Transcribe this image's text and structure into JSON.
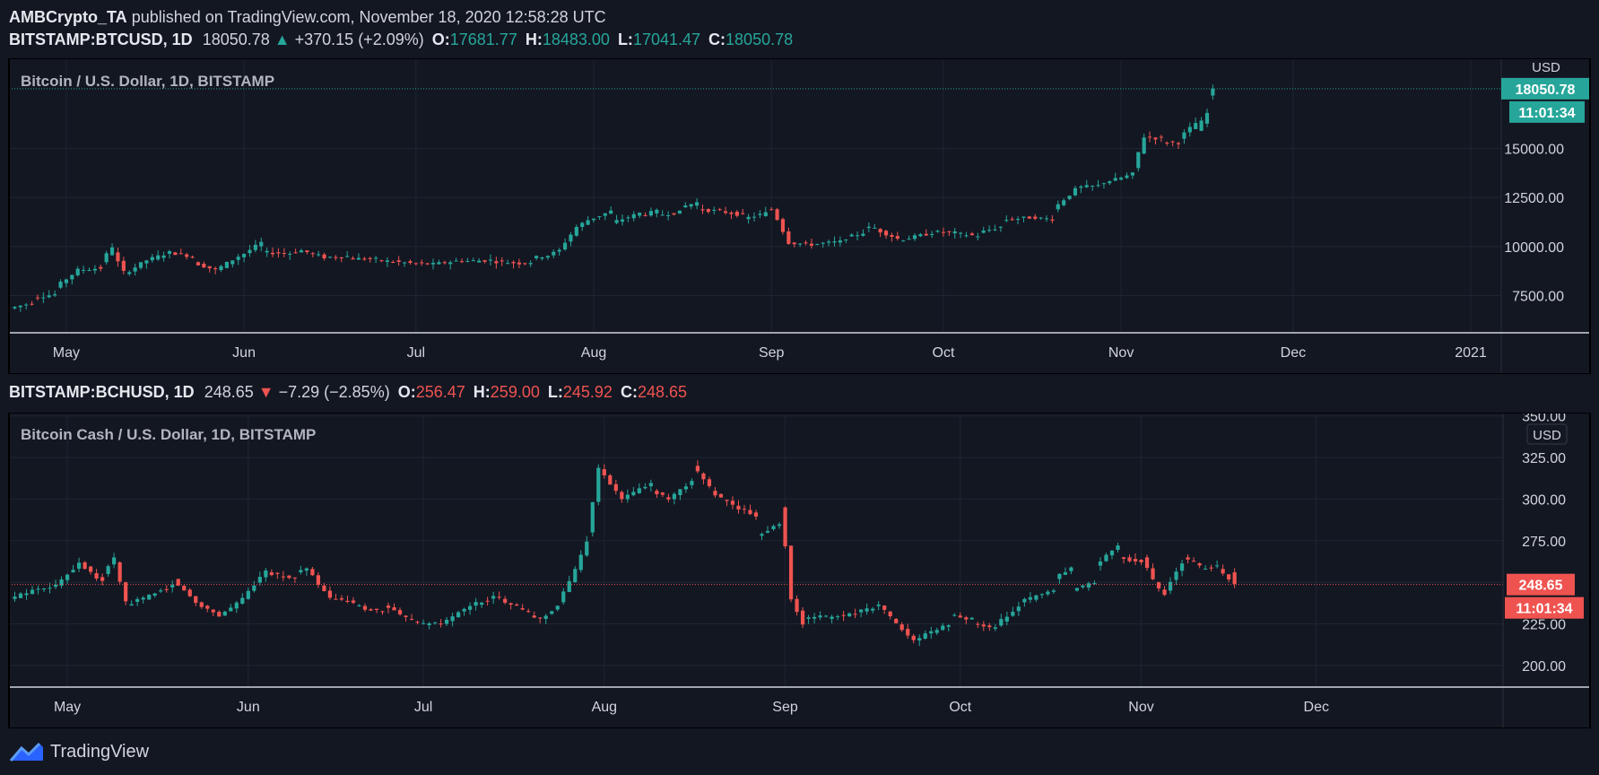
{
  "header": {
    "author": "AMBCrypto_TA",
    "published_text": "published on TradingView.com, November 18, 2020 12:58:28 UTC"
  },
  "btc": {
    "symbol": "BITSTAMP:BTCUSD, 1D",
    "last": "18050.78",
    "arrow": "▲",
    "change": "+370.15 (+2.09%)",
    "o_label": "O:",
    "o": "17681.77",
    "h_label": "H:",
    "h": "18483.00",
    "l_label": "L:",
    "l": "17041.47",
    "c_label": "C:",
    "c": "18050.78",
    "pane_title": "Bitcoin / U.S. Dollar, 1D, BITSTAMP",
    "currency": "USD",
    "price_tag": "18050.78",
    "countdown": "11:01:34"
  },
  "bch": {
    "symbol": "BITSTAMP:BCHUSD, 1D",
    "last": "248.65",
    "arrow": "▼",
    "change": "−7.29 (−2.85%)",
    "o_label": "O:",
    "o": "256.47",
    "h_label": "H:",
    "h": "259.00",
    "l_label": "L:",
    "l": "245.92",
    "c_label": "C:",
    "c": "248.65",
    "pane_title": "Bitcoin Cash / U.S. Dollar, 1D, BITSTAMP",
    "currency": "USD",
    "price_tag": "248.65",
    "countdown": "11:01:34"
  },
  "footer": {
    "brand": "TradingView"
  },
  "colors": {
    "background": "#131722",
    "up": "#26a69a",
    "down": "#ef5350",
    "grid": "#1f2432",
    "text": "#d1d4dc"
  },
  "chart_data": [
    {
      "type": "candlestick",
      "title": "Bitcoin / U.S. Dollar, 1D, BITSTAMP",
      "ylabel": "USD",
      "ylim": [
        5600,
        19600
      ],
      "yticks": [
        7500,
        10000,
        12500,
        15000
      ],
      "ytick_labels": [
        "7500.00",
        "10000.00",
        "12500.00",
        "15000.00"
      ],
      "xticks": [
        "May",
        "Jun",
        "Jul",
        "Aug",
        "Sep",
        "Oct",
        "Nov",
        "Dec",
        "2021"
      ],
      "x_range": [
        "2020-04-21",
        "2021-01-06"
      ],
      "last_price": 18050.78,
      "series": [
        {
          "values": [
            [
              "2020-04-22",
              6850,
              7120
            ],
            [
              "2020-04-26",
              7400,
              7560
            ],
            [
              "2020-04-30",
              7900,
              8800
            ],
            [
              "2020-05-04",
              8800,
              8900
            ],
            [
              "2020-05-08",
              9200,
              10000
            ],
            [
              "2020-05-10",
              9700,
              8700
            ],
            [
              "2020-05-12",
              8600,
              9300
            ],
            [
              "2020-05-16",
              9300,
              9700
            ],
            [
              "2020-05-20",
              9700,
              9500
            ],
            [
              "2020-05-24",
              9200,
              8800
            ],
            [
              "2020-05-28",
              8800,
              9500
            ],
            [
              "2020-06-01",
              9450,
              10200
            ],
            [
              "2020-06-05",
              9700,
              9650
            ],
            [
              "2020-06-10",
              9700,
              9800
            ],
            [
              "2020-06-12",
              9800,
              9450
            ],
            [
              "2020-06-16",
              9450,
              9500
            ],
            [
              "2020-06-20",
              9400,
              9350
            ],
            [
              "2020-06-25",
              9300,
              9150
            ],
            [
              "2020-07-01",
              9150,
              9100
            ],
            [
              "2020-07-05",
              9100,
              9300
            ],
            [
              "2020-07-10",
              9250,
              9300
            ],
            [
              "2020-07-15",
              9250,
              9150
            ],
            [
              "2020-07-20",
              9150,
              9200
            ],
            [
              "2020-07-22",
              9400,
              9550
            ],
            [
              "2020-07-25",
              9550,
              9800
            ],
            [
              "2020-07-27",
              9850,
              11000
            ],
            [
              "2020-07-30",
              11000,
              11350
            ],
            [
              "2020-08-01",
              11350,
              11800
            ],
            [
              "2020-08-05",
              11200,
              11700
            ],
            [
              "2020-08-10",
              11600,
              11800
            ],
            [
              "2020-08-13",
              11600,
              11750
            ],
            [
              "2020-08-17",
              12000,
              12250
            ],
            [
              "2020-08-20",
              11900,
              11800
            ],
            [
              "2020-08-24",
              11800,
              11600
            ],
            [
              "2020-08-28",
              11400,
              11700
            ],
            [
              "2020-09-01",
              11900,
              11900
            ],
            [
              "2020-09-02",
              11900,
              11400
            ],
            [
              "2020-09-03",
              11400,
              10200
            ],
            [
              "2020-09-05",
              10200,
              10100
            ],
            [
              "2020-09-09",
              10100,
              10250
            ],
            [
              "2020-09-14",
              10350,
              10700
            ],
            [
              "2020-09-18",
              10950,
              10950
            ],
            [
              "2020-09-20",
              10900,
              10400
            ],
            [
              "2020-09-24",
              10300,
              10700
            ],
            [
              "2020-09-30",
              10750,
              10700
            ],
            [
              "2020-10-04",
              10650,
              10550
            ],
            [
              "2020-10-08",
              10700,
              11000
            ],
            [
              "2020-10-12",
              11350,
              11500
            ],
            [
              "2020-10-18",
              11450,
              11400
            ],
            [
              "2020-10-21",
              11900,
              12900
            ],
            [
              "2020-10-25",
              13000,
              13100
            ],
            [
              "2020-10-29",
              13200,
              13500
            ],
            [
              "2020-11-02",
              13500,
              13700
            ],
            [
              "2020-11-04",
              14000,
              15600
            ],
            [
              "2020-11-06",
              15600,
              15500
            ],
            [
              "2020-11-09",
              15300,
              15300
            ],
            [
              "2020-11-12",
              15500,
              16300
            ],
            [
              "2020-11-15",
              15900,
              16800
            ],
            [
              "2020-11-17",
              17700,
              18050
            ]
          ]
        }
      ]
    },
    {
      "type": "candlestick",
      "title": "Bitcoin Cash / U.S. Dollar, 1D, BITSTAMP",
      "ylabel": "USD",
      "ylim": [
        187,
        352
      ],
      "yticks": [
        200,
        225,
        250,
        275,
        300,
        325,
        350
      ],
      "ytick_labels": [
        "200.00",
        "225.00",
        "250.00",
        "275.00",
        "300.00",
        "325.00",
        "350.00"
      ],
      "xticks": [
        "May",
        "Jun",
        "Jul",
        "Aug",
        "Sep",
        "Oct",
        "Nov",
        "Dec"
      ],
      "x_range": [
        "2020-04-21",
        "2021-01-02"
      ],
      "last_price": 248.65,
      "series": [
        {
          "values": [
            [
              "2020-04-22",
              240,
              245
            ],
            [
              "2020-04-26",
              246,
              248
            ],
            [
              "2020-04-30",
              248,
              262
            ],
            [
              "2020-05-04",
              262,
              250
            ],
            [
              "2020-05-08",
              255,
              265
            ],
            [
              "2020-05-10",
              262,
              238
            ],
            [
              "2020-05-12",
              236,
              242
            ],
            [
              "2020-05-16",
              242,
              248
            ],
            [
              "2020-05-20",
              252,
              238
            ],
            [
              "2020-05-24",
              238,
              230
            ],
            [
              "2020-05-28",
              230,
              240
            ],
            [
              "2020-06-01",
              240,
              258
            ],
            [
              "2020-06-05",
              256,
              252
            ],
            [
              "2020-06-10",
              256,
              258
            ],
            [
              "2020-06-12",
              258,
              240
            ],
            [
              "2020-06-16",
              240,
              238
            ],
            [
              "2020-06-20",
              236,
              232
            ],
            [
              "2020-06-25",
              236,
              225
            ],
            [
              "2020-07-01",
              225,
              225
            ],
            [
              "2020-07-05",
              225,
              236
            ],
            [
              "2020-07-10",
              236,
              242
            ],
            [
              "2020-07-15",
              240,
              232
            ],
            [
              "2020-07-20",
              230,
              228
            ],
            [
              "2020-07-22",
              228,
              236
            ],
            [
              "2020-07-25",
              238,
              250
            ],
            [
              "2020-07-27",
              250,
              275
            ],
            [
              "2020-07-30",
              280,
              318
            ],
            [
              "2020-08-01",
              318,
              300
            ],
            [
              "2020-08-05",
              300,
              310
            ],
            [
              "2020-08-10",
              305,
              300
            ],
            [
              "2020-08-13",
              300,
              310
            ],
            [
              "2020-08-17",
              320,
              308
            ],
            [
              "2020-08-20",
              305,
              296
            ],
            [
              "2020-08-24",
              296,
              290
            ],
            [
              "2020-08-28",
              278,
              285
            ],
            [
              "2020-09-01",
              295,
              272
            ],
            [
              "2020-09-02",
              272,
              240
            ],
            [
              "2020-09-03",
              240,
              225
            ],
            [
              "2020-09-05",
              228,
              230
            ],
            [
              "2020-09-09",
              228,
              232
            ],
            [
              "2020-09-14",
              232,
              236
            ],
            [
              "2020-09-18",
              236,
              230
            ],
            [
              "2020-09-20",
              228,
              215
            ],
            [
              "2020-09-24",
              215,
              225
            ],
            [
              "2020-09-30",
              230,
              228
            ],
            [
              "2020-10-04",
              225,
              222
            ],
            [
              "2020-10-08",
              224,
              236
            ],
            [
              "2020-10-12",
              238,
              245
            ],
            [
              "2020-10-18",
              252,
              258
            ],
            [
              "2020-10-21",
              245,
              250
            ],
            [
              "2020-10-25",
              260,
              272
            ],
            [
              "2020-10-29",
              265,
              262
            ],
            [
              "2020-11-02",
              265,
              252
            ],
            [
              "2020-11-04",
              250,
              242
            ],
            [
              "2020-11-06",
              245,
              262
            ],
            [
              "2020-11-09",
              265,
              260
            ],
            [
              "2020-11-12",
              258,
              260
            ],
            [
              "2020-11-15",
              258,
              252
            ],
            [
              "2020-11-17",
              256,
              249
            ]
          ]
        }
      ]
    }
  ]
}
